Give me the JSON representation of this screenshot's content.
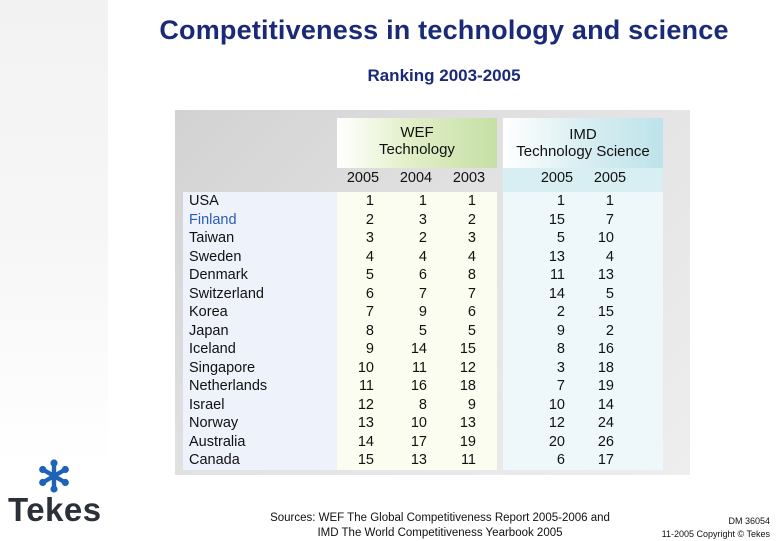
{
  "title": "Competitiveness in technology and science",
  "subtitle": "Ranking 2003-2005",
  "wef": {
    "line1": "WEF",
    "line2": "Technology",
    "years": [
      "2005",
      "2004",
      "2003"
    ]
  },
  "imd": {
    "line1": "IMD",
    "line2": "Technology Science",
    "years": [
      "2005",
      "2005"
    ]
  },
  "rows": [
    {
      "country": "USA",
      "w2005": "1",
      "w2004": "1",
      "w2003": "1",
      "i1": "1",
      "i2": "1"
    },
    {
      "country": "Finland",
      "w2005": "2",
      "w2004": "3",
      "w2003": "2",
      "i1": "15",
      "i2": "7"
    },
    {
      "country": "Taiwan",
      "w2005": "3",
      "w2004": "2",
      "w2003": "3",
      "i1": "5",
      "i2": "10"
    },
    {
      "country": "Sweden",
      "w2005": "4",
      "w2004": "4",
      "w2003": "4",
      "i1": "13",
      "i2": "4"
    },
    {
      "country": "Denmark",
      "w2005": "5",
      "w2004": "6",
      "w2003": "8",
      "i1": "11",
      "i2": "13"
    },
    {
      "country": "Switzerland",
      "w2005": "6",
      "w2004": "7",
      "w2003": "7",
      "i1": "14",
      "i2": "5"
    },
    {
      "country": "Korea",
      "w2005": "7",
      "w2004": "9",
      "w2003": "6",
      "i1": "2",
      "i2": "15"
    },
    {
      "country": "Japan",
      "w2005": "8",
      "w2004": "5",
      "w2003": "5",
      "i1": "9",
      "i2": "2"
    },
    {
      "country": "Iceland",
      "w2005": "9",
      "w2004": "14",
      "w2003": "15",
      "i1": "8",
      "i2": "16"
    },
    {
      "country": "Singapore",
      "w2005": "10",
      "w2004": "11",
      "w2003": "12",
      "i1": "3",
      "i2": "18"
    },
    {
      "country": "Netherlands",
      "w2005": "11",
      "w2004": "16",
      "w2003": "18",
      "i1": "7",
      "i2": "19"
    },
    {
      "country": "Israel",
      "w2005": "12",
      "w2004": "8",
      "w2003": "9",
      "i1": "10",
      "i2": "14"
    },
    {
      "country": "Norway",
      "w2005": "13",
      "w2004": "10",
      "w2003": "13",
      "i1": "12",
      "i2": "24"
    },
    {
      "country": "Australia",
      "w2005": "14",
      "w2004": "17",
      "w2003": "19",
      "i1": "20",
      "i2": "26"
    },
    {
      "country": "Canada",
      "w2005": "15",
      "w2004": "13",
      "w2003": "11",
      "i1": "6",
      "i2": "17"
    }
  ],
  "sources": {
    "line1": "Sources: WEF The Global Competitiveness Report 2005-2006 and",
    "line2": "IMD The World Competitiveness Yearbook 2005"
  },
  "doc": {
    "id": "DM 36054",
    "copyright": "11-2005 Copyright © Tekes"
  },
  "logo": {
    "text": "Tekes"
  },
  "colors": {
    "title": "#1b2a78",
    "finland": "#2a5bb8",
    "logo_blue": "#1f63b8"
  }
}
